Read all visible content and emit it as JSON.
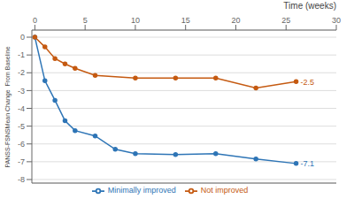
{
  "chart_data": {
    "type": "line",
    "title": "Time (weeks)",
    "y_label": "PANSS-FSNSMean Change  From Baseline",
    "xlim": [
      -0.3,
      30
    ],
    "ylim": [
      -8.2,
      0.4
    ],
    "xticks": [
      0,
      5,
      10,
      15,
      20,
      25,
      30
    ],
    "yticks": [
      0,
      -1,
      -2,
      -3,
      -4,
      -5,
      -6,
      -7,
      -8
    ],
    "grid": "y",
    "legend": "bottom",
    "marker": "circle",
    "series": [
      {
        "name": "Minimally improved",
        "color": "#2E75B6",
        "x": [
          0,
          1,
          2,
          3,
          4,
          6,
          8,
          10,
          14,
          18,
          22,
          26
        ],
        "values": [
          0,
          -2.45,
          -3.55,
          -4.7,
          -5.25,
          -5.55,
          -6.3,
          -6.55,
          -6.6,
          -6.55,
          -6.85,
          -7.1
        ]
      },
      {
        "name": "Not improved",
        "color": "#C55A11",
        "x": [
          0,
          1,
          2,
          3,
          4,
          6,
          10,
          14,
          18,
          22,
          26
        ],
        "values": [
          0,
          -0.55,
          -1.2,
          -1.5,
          -1.75,
          -2.15,
          -2.3,
          -2.3,
          -2.3,
          -2.85,
          -2.5
        ]
      }
    ],
    "annotations": [
      {
        "text": "-7.1",
        "x": 26,
        "y": -7.1,
        "color": "#2E75B6"
      },
      {
        "text": "-2.5",
        "x": 26,
        "y": -2.5,
        "color": "#C55A11"
      }
    ]
  }
}
